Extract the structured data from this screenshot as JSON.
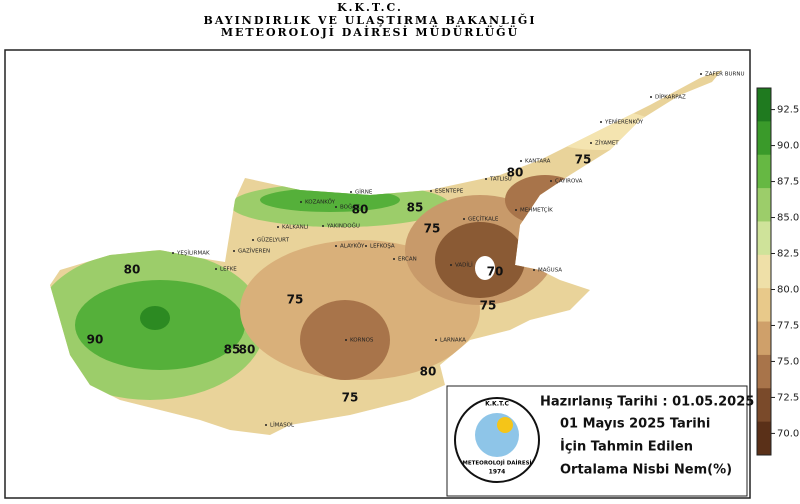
{
  "header": {
    "line1": "K.K.T.C.",
    "line2": "BAYINDIRLIK VE ULAŞTIRMA BAKANLIĞI",
    "line3": "METEOROLOJİ DAİRESİ MÜDÜRLÜĞÜ"
  },
  "colorbar": {
    "lim": [
      68.5,
      94
    ],
    "ticks": [
      92.5,
      {
        "value": 90,
        "label": "90.0"
      },
      87.5,
      {
        "value": 85,
        "label": "85.0"
      },
      82.5,
      {
        "value": 80,
        "label": "80.0"
      },
      77.5,
      {
        "value": 75,
        "label": "75.0"
      },
      72.5,
      {
        "value": 70,
        "label": "70.0"
      }
    ],
    "colors": [
      "#1f7a1f",
      "#3a9a2a",
      "#66b843",
      "#9ccd6a",
      "#cfe39a",
      "#efe0a8",
      "#e8c98a",
      "#cfa06a",
      "#a8744a",
      "#7a4a2a",
      "#5a3018"
    ]
  },
  "places": [
    "ZAFER BURNU",
    "DİPKARPAZ",
    "YENİERENKÖY",
    "ZİYAMET",
    "KANTARA",
    "TATLISU",
    "ÇAYIROVA",
    "MEHMETÇİK",
    "GİRNE",
    "KOZANKÖY",
    "ESENTEPE",
    "BOĞAZ",
    "GEÇİTKALE",
    "KALKANLI",
    "GÜZELYURT",
    "GAZİVEREN",
    "LEFKE",
    "YEŞİLIRMAK",
    "ALAYKÖY",
    "LEFKOŞA",
    "YAKINDOĞU",
    "ERCAN",
    "VADİLİ",
    "MAĞUSA",
    "KORNOS",
    "LARNAKA",
    "LİMASOL"
  ],
  "contour_labels": [
    "75",
    "80",
    "75",
    "80",
    "85",
    "70",
    "75",
    "80",
    "90",
    "85",
    "80",
    "75",
    "80",
    "75"
  ],
  "info": {
    "prepared": "Hazırlanış Tarihi : 01.05.2025",
    "date": "01 Mayıs 2025 Tarihi",
    "forecast": "İçin Tahmin Edilen",
    "subject": "Ortalama Nisbi Nem(%)"
  },
  "logo": {
    "top": "K.K.T.C",
    "name": "METEOROLOJİ DAİRESİ",
    "year": "1974"
  }
}
